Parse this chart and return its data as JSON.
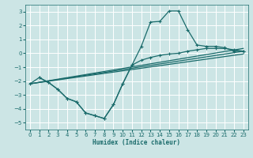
{
  "xlabel": "Humidex (Indice chaleur)",
  "xlim": [
    -0.5,
    23.5
  ],
  "ylim": [
    -5.5,
    3.5
  ],
  "xticks": [
    0,
    1,
    2,
    3,
    4,
    5,
    6,
    7,
    8,
    9,
    10,
    11,
    12,
    13,
    14,
    15,
    16,
    17,
    18,
    19,
    20,
    21,
    22,
    23
  ],
  "yticks": [
    -5,
    -4,
    -3,
    -2,
    -1,
    0,
    1,
    2,
    3
  ],
  "bg_color": "#cce5e5",
  "grid_color": "#ffffff",
  "line_color": "#1a6b6b",
  "curve1_x": [
    0,
    1,
    2,
    3,
    4,
    5,
    6,
    7,
    8,
    9,
    10,
    11,
    12,
    13,
    14,
    15,
    16,
    17,
    18,
    19,
    20,
    21,
    22,
    23
  ],
  "curve1_y": [
    -2.2,
    -1.75,
    -2.1,
    -2.6,
    -3.25,
    -3.5,
    -4.3,
    -4.5,
    -4.7,
    -3.7,
    -2.2,
    -0.85,
    -0.5,
    -0.3,
    -0.15,
    -0.05,
    0.0,
    0.15,
    0.25,
    0.35,
    0.35,
    0.35,
    0.25,
    0.15
  ],
  "curve2_x": [
    1,
    2,
    3,
    4,
    5,
    6,
    7,
    8,
    9,
    10,
    11,
    12,
    13,
    14,
    15,
    16,
    17,
    18,
    19,
    20,
    21,
    22,
    23
  ],
  "curve2_y": [
    -1.75,
    -2.1,
    -2.6,
    -3.25,
    -3.5,
    -4.3,
    -4.5,
    -4.7,
    -3.7,
    -2.2,
    -0.85,
    0.5,
    2.25,
    2.3,
    3.05,
    3.05,
    1.7,
    0.6,
    0.5,
    0.5,
    0.4,
    0.15,
    0.15
  ],
  "line1_x": [
    0,
    23
  ],
  "line1_y": [
    -2.2,
    0.15
  ],
  "line2_x": [
    0,
    23
  ],
  "line2_y": [
    -2.2,
    0.35
  ],
  "line3_x": [
    0,
    23
  ],
  "line3_y": [
    -2.2,
    -0.05
  ]
}
